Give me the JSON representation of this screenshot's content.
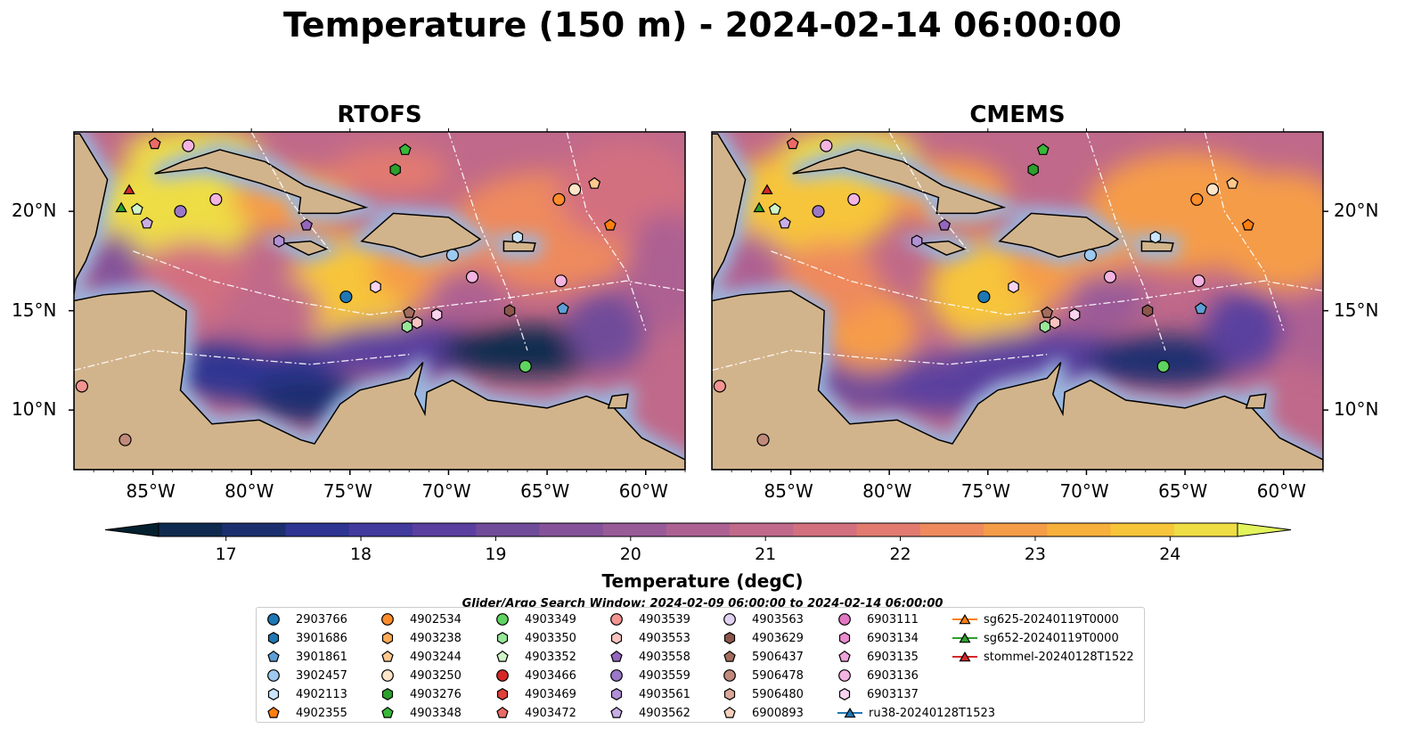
{
  "title": "Temperature (150 m) - 2024-02-14 06:00:00",
  "panels": [
    {
      "title": "RTOFS"
    },
    {
      "title": "CMEMS"
    }
  ],
  "chart_data": {
    "type": "heatmap",
    "xlim": [
      -89,
      -58
    ],
    "ylim": [
      7,
      24
    ],
    "xticks": [
      -85,
      -80,
      -75,
      -70,
      -65,
      -60
    ],
    "xtick_labels": [
      "85°W",
      "80°W",
      "75°W",
      "70°W",
      "65°W",
      "60°W"
    ],
    "yticks": [
      10,
      15,
      20
    ],
    "ytick_labels": [
      "10°N",
      "15°N",
      "20°N"
    ],
    "colorbar": {
      "label": "Temperature (degC)",
      "range": [
        16.5,
        24.5
      ],
      "ticks": [
        17,
        18,
        19,
        20,
        21,
        22,
        23,
        24
      ],
      "tick_labels": [
        "17",
        "18",
        "19",
        "20",
        "21",
        "22",
        "23",
        "24"
      ],
      "colors": [
        "#04202f",
        "#0e2a4e",
        "#1b2f6f",
        "#2d3491",
        "#433a9e",
        "#5a3f9f",
        "#704b9a",
        "#85529a",
        "#995a98",
        "#ad6192",
        "#c0698a",
        "#d37080",
        "#e27a6f",
        "#ee8a5d",
        "#f59c48",
        "#f8b03d",
        "#f7c53a",
        "#eedd44",
        "#e2f35c"
      ],
      "extend": "both"
    },
    "series": [
      {
        "name": "2903766",
        "marker": "circle",
        "color": "#1f77b4",
        "points": [
          [
            -75.2,
            15.7
          ]
        ]
      },
      {
        "name": "3901686",
        "marker": "hexagon",
        "color": "#1f77b4",
        "points": []
      },
      {
        "name": "3901861",
        "marker": "pentagon",
        "color": "#5d9fd5",
        "points": [
          [
            -64.2,
            15.1
          ]
        ]
      },
      {
        "name": "3902457",
        "marker": "circle",
        "color": "#9ec9f0",
        "points": [
          [
            -69.8,
            17.8
          ]
        ]
      },
      {
        "name": "4902113",
        "marker": "hexagon",
        "color": "#c9e4fb",
        "points": [
          [
            -66.5,
            18.7
          ]
        ]
      },
      {
        "name": "4902355",
        "marker": "pentagon",
        "color": "#ff7f0e",
        "points": [
          [
            -61.8,
            19.3
          ]
        ]
      },
      {
        "name": "4902534",
        "marker": "circle",
        "color": "#ff8c2a",
        "points": [
          [
            -64.4,
            20.6
          ]
        ]
      },
      {
        "name": "4903238",
        "marker": "hexagon",
        "color": "#ffaa55",
        "points": []
      },
      {
        "name": "4903244",
        "marker": "pentagon",
        "color": "#ffc98e",
        "points": [
          [
            -62.6,
            21.4
          ]
        ]
      },
      {
        "name": "4903250",
        "marker": "circle",
        "color": "#ffe5c8",
        "points": [
          [
            -63.6,
            21.1
          ]
        ]
      },
      {
        "name": "4903276",
        "marker": "hexagon",
        "color": "#2ca02c",
        "points": [
          [
            -72.7,
            22.1
          ]
        ]
      },
      {
        "name": "4903348",
        "marker": "pentagon",
        "color": "#38b838",
        "points": [
          [
            -72.2,
            23.1
          ]
        ]
      },
      {
        "name": "4903349",
        "marker": "circle",
        "color": "#5fd35f",
        "points": [
          [
            -66.1,
            12.2
          ]
        ]
      },
      {
        "name": "4903350",
        "marker": "hexagon",
        "color": "#98e698",
        "points": [
          [
            -72.1,
            14.2
          ]
        ]
      },
      {
        "name": "4903352",
        "marker": "pentagon",
        "color": "#d0f5c8",
        "points": [
          [
            -85.8,
            20.1
          ]
        ]
      },
      {
        "name": "4903466",
        "marker": "circle",
        "color": "#d62728",
        "points": []
      },
      {
        "name": "4903469",
        "marker": "hexagon",
        "color": "#e0403a",
        "points": []
      },
      {
        "name": "4903472",
        "marker": "pentagon",
        "color": "#ec6a65",
        "points": [
          [
            -84.9,
            23.4
          ]
        ]
      },
      {
        "name": "4903539",
        "marker": "circle",
        "color": "#f39490",
        "points": [
          [
            -88.6,
            11.2
          ]
        ]
      },
      {
        "name": "4903553",
        "marker": "hexagon",
        "color": "#f8c3c0",
        "points": [
          [
            -71.6,
            14.4
          ]
        ]
      },
      {
        "name": "4903558",
        "marker": "pentagon",
        "color": "#9467bd",
        "points": [
          [
            -77.2,
            19.3
          ]
        ]
      },
      {
        "name": "4903559",
        "marker": "circle",
        "color": "#9b77c8",
        "points": [
          [
            -83.6,
            20.0
          ]
        ]
      },
      {
        "name": "4903561",
        "marker": "hexagon",
        "color": "#b190d6",
        "points": [
          [
            -78.6,
            18.5
          ]
        ]
      },
      {
        "name": "4903562",
        "marker": "pentagon",
        "color": "#c9aee6",
        "points": [
          [
            -85.3,
            19.4
          ]
        ]
      },
      {
        "name": "4903563",
        "marker": "circle",
        "color": "#e2d1f3",
        "points": []
      },
      {
        "name": "4903629",
        "marker": "hexagon",
        "color": "#8c564b",
        "points": [
          [
            -66.9,
            15.0
          ]
        ]
      },
      {
        "name": "5906437",
        "marker": "pentagon",
        "color": "#a36d5f",
        "points": [
          [
            -72.0,
            14.9
          ]
        ]
      },
      {
        "name": "5906478",
        "marker": "circle",
        "color": "#c08a7b",
        "points": [
          [
            -86.4,
            8.5
          ]
        ]
      },
      {
        "name": "5906480",
        "marker": "hexagon",
        "color": "#dba898",
        "points": []
      },
      {
        "name": "6900893",
        "marker": "pentagon",
        "color": "#f6cfbd",
        "points": []
      },
      {
        "name": "6903111",
        "marker": "circle",
        "color": "#e377c2",
        "points": []
      },
      {
        "name": "6903134",
        "marker": "hexagon",
        "color": "#ea8ccf",
        "points": []
      },
      {
        "name": "6903135",
        "marker": "pentagon",
        "color": "#f0a3da",
        "points": []
      },
      {
        "name": "6903136",
        "marker": "circle",
        "color": "#f4b4e2",
        "points": [
          [
            -81.8,
            20.6
          ],
          [
            -68.8,
            16.7
          ],
          [
            -64.3,
            16.5
          ],
          [
            -83.2,
            23.3
          ]
        ]
      },
      {
        "name": "6903137",
        "marker": "hexagon",
        "color": "#f9d3ef",
        "points": [
          [
            -73.7,
            16.2
          ],
          [
            -70.6,
            14.8
          ]
        ]
      },
      {
        "name": "ru38-20240128T1523",
        "marker": "triangle",
        "color": "#1f77b4",
        "points": []
      },
      {
        "name": "sg625-20240119T0000",
        "marker": "triangle",
        "color": "#ff7f0e",
        "points": []
      },
      {
        "name": "sg652-20240119T0000",
        "marker": "triangle",
        "color": "#2ca02c",
        "points": [
          [
            -86.6,
            20.2
          ]
        ]
      },
      {
        "name": "stommel-20240128T1522",
        "marker": "triangle",
        "color": "#d62728",
        "points": [
          [
            -86.2,
            21.1
          ]
        ]
      }
    ]
  },
  "search_window": "Glider/Argo Search Window: 2024-02-09 06:00:00 to 2024-02-14 06:00:00",
  "colors": {
    "land": "#d2b48c",
    "shelf": "#9ab8e0",
    "deep_dark": "#04202f"
  }
}
